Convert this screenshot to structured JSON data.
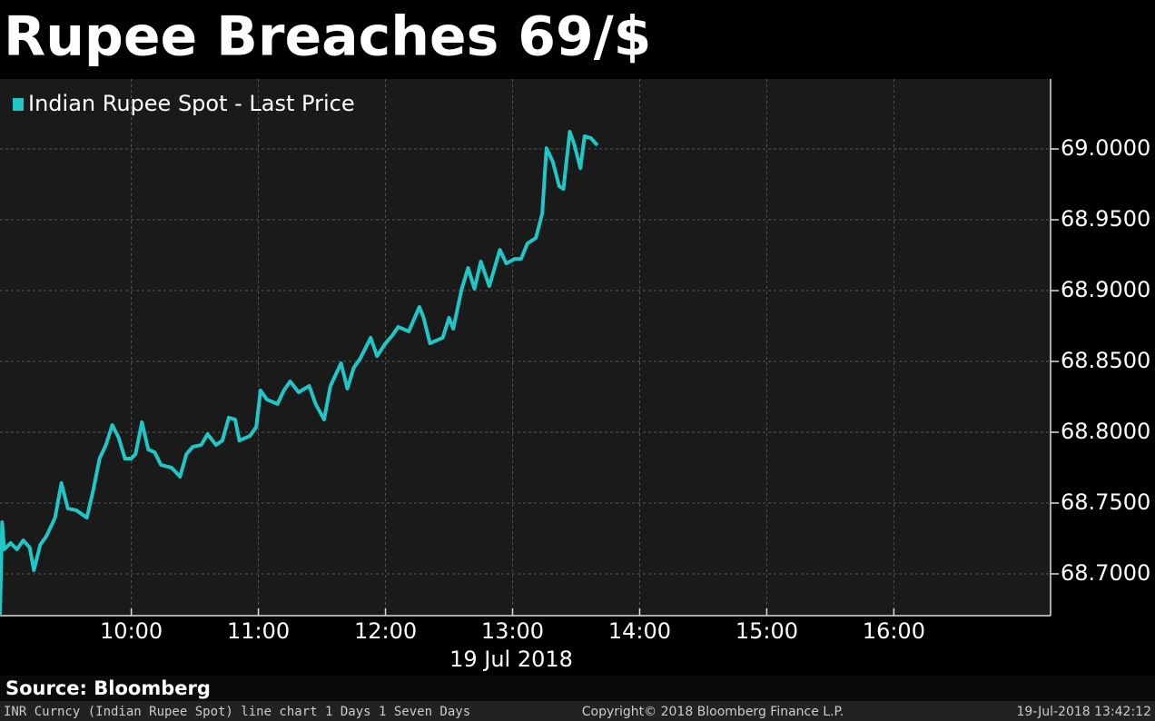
{
  "chart_data": {
    "type": "line",
    "title": "Rupee Breaches 69/$",
    "x_label": "19 Jul 2018",
    "source": "Source: Bloomberg",
    "footer_left": "INR Curncy (Indian Rupee Spot) line chart 1 Days 1 Seven Days",
    "footer_center": "Copyright© 2018 Bloomberg Finance L.P.",
    "footer_right": "19-Jul-2018 13:42:12",
    "x": [
      "08:58",
      "08:59",
      "09:00",
      "09:03",
      "09:06",
      "09:09",
      "09:12",
      "09:14",
      "09:17",
      "09:20",
      "09:24",
      "09:27",
      "09:30",
      "09:34",
      "09:39",
      "09:42",
      "09:45",
      "09:48",
      "09:51",
      "09:54",
      "09:57",
      "10:00",
      "10:02",
      "10:05",
      "10:08",
      "10:11",
      "10:14",
      "10:19",
      "10:23",
      "10:26",
      "10:29",
      "10:33",
      "10:36",
      "10:40",
      "10:43",
      "10:46",
      "10:49",
      "10:51",
      "10:56",
      "10:59",
      "11:01",
      "11:04",
      "11:09",
      "11:12",
      "11:15",
      "11:19",
      "11:24",
      "11:27",
      "11:31",
      "11:34",
      "11:39",
      "11:42",
      "11:45",
      "11:48",
      "11:53",
      "11:56",
      "12:00",
      "12:03",
      "12:06",
      "12:11",
      "12:16",
      "12:18",
      "12:21",
      "12:27",
      "12:30",
      "12:32",
      "12:36",
      "12:39",
      "12:42",
      "12:45",
      "12:49",
      "12:54",
      "12:57",
      "13:01",
      "13:04",
      "13:07",
      "13:11",
      "13:14",
      "13:16",
      "13:19",
      "13:22",
      "13:24",
      "13:27",
      "13:29",
      "13:32",
      "13:34",
      "13:37",
      "13:40"
    ],
    "series": [
      {
        "name": "Indian Rupee Spot - Last Price",
        "color": "#1fc7c7",
        "values": [
          68.6705,
          68.7365,
          68.7173,
          68.7218,
          68.7173,
          68.7237,
          68.7186,
          68.7026,
          68.7205,
          68.7269,
          68.7397,
          68.7641,
          68.7462,
          68.7449,
          68.7397,
          68.759,
          68.7814,
          68.791,
          68.8051,
          68.7962,
          68.7814,
          68.7814,
          68.7846,
          68.8071,
          68.7878,
          68.7859,
          68.7769,
          68.775,
          68.7686,
          68.7846,
          68.7897,
          68.791,
          68.7987,
          68.791,
          68.7942,
          68.8103,
          68.809,
          68.7942,
          68.7974,
          68.8038,
          68.8295,
          68.8231,
          68.8199,
          68.8295,
          68.8359,
          68.8282,
          68.8327,
          68.8199,
          68.809,
          68.8327,
          68.8487,
          68.8308,
          68.8455,
          68.8519,
          68.8667,
          68.8538,
          68.8628,
          68.8679,
          68.8744,
          68.8712,
          68.8885,
          68.8808,
          68.8628,
          68.8667,
          68.8808,
          68.8731,
          68.9013,
          68.916,
          68.9013,
          68.9205,
          68.9032,
          68.9288,
          68.9192,
          68.9224,
          68.9224,
          68.9333,
          68.9372,
          68.9545,
          69.0006,
          68.991,
          68.9737,
          68.9718,
          69.0122,
          69.0038,
          68.9865,
          69.009,
          69.0077,
          69.0026
        ]
      }
    ],
    "xlim": [
      "08:58",
      "17:14"
    ],
    "xticks": [
      "10:00",
      "11:00",
      "12:00",
      "13:00",
      "14:00",
      "15:00",
      "16:00"
    ],
    "ylim": [
      68.6705,
      69.0494
    ],
    "yticks": [
      {
        "value": 68.7,
        "label": "68.7000"
      },
      {
        "value": 68.75,
        "label": "68.7500"
      },
      {
        "value": 68.8,
        "label": "68.8000"
      },
      {
        "value": 68.85,
        "label": "68.8500"
      },
      {
        "value": 68.9,
        "label": "68.9000"
      },
      {
        "value": 68.95,
        "label": "68.9500"
      },
      {
        "value": 69,
        "label": "69.0000"
      }
    ],
    "grid": true,
    "legend": "upper left"
  }
}
